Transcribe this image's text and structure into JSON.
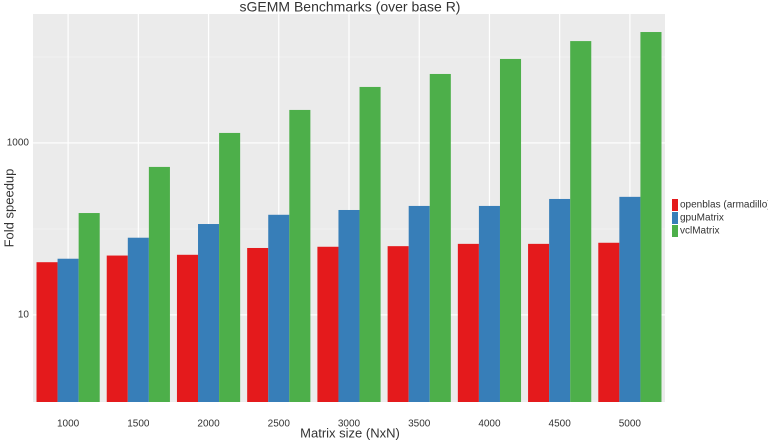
{
  "chart_data": {
    "type": "bar",
    "title": "sGEMM Benchmarks (over base R)",
    "x_label": "Matrix size (NxN)",
    "y_label": "Fold speedup",
    "categories": [
      "1000",
      "1500",
      "2000",
      "2500",
      "3000",
      "3500",
      "4000",
      "4500",
      "5000"
    ],
    "series": [
      {
        "name": "openblas (armadillo)",
        "color": "#e41a1c",
        "values": [
          41,
          49,
          50,
          60,
          62,
          63,
          67,
          67,
          69
        ]
      },
      {
        "name": "gpuMatrix",
        "color": "#377eb8",
        "values": [
          45,
          79,
          114,
          146,
          166,
          185,
          185,
          223,
          236
        ]
      },
      {
        "name": "vclMatrix",
        "color": "#4daf4a",
        "values": [
          153,
          526,
          1307,
          2420,
          4480,
          6340,
          9480,
          15300,
          19500
        ]
      }
    ],
    "ylim": [
      0.97,
      31600
    ],
    "yticks": [
      10,
      1000
    ],
    "log_y": true,
    "grid": true,
    "legend": "right"
  }
}
